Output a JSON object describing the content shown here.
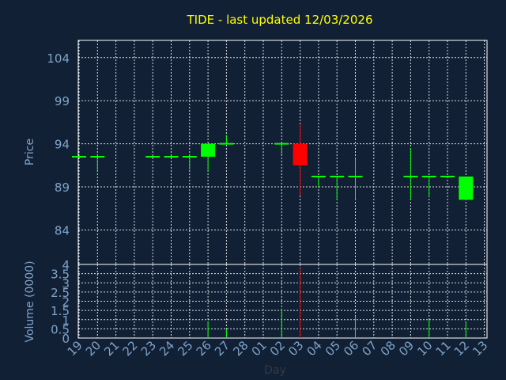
{
  "chart_data": [
    {
      "type": "candlestick",
      "title": "TIDE - last updated 12/03/2026",
      "ylabel": "Price",
      "ylim": [
        80,
        106
      ],
      "yticks": [
        104,
        99,
        94,
        89,
        84
      ],
      "grid": true,
      "colors": {
        "up": "#00ff00",
        "down": "#ff0000",
        "title": "#ffff00",
        "axis_text": "#7fa3c8",
        "grid": "#ffffff",
        "background": "#112035"
      },
      "x_labels": [
        "19",
        "20",
        "21",
        "22",
        "23",
        "24",
        "25",
        "26",
        "27",
        "28",
        "01",
        "02",
        "03",
        "04",
        "05",
        "06",
        "07",
        "08",
        "09",
        "10",
        "11",
        "12",
        "13"
      ],
      "candles": [
        {
          "day": "19",
          "open": 92.5,
          "high": 92.5,
          "low": 92.5,
          "close": 92.5
        },
        {
          "day": "20",
          "open": 92.5,
          "high": 92.5,
          "low": 90.8,
          "close": 92.5
        },
        {
          "day": "23",
          "open": 92.5,
          "high": 92.5,
          "low": 92.5,
          "close": 92.5
        },
        {
          "day": "24",
          "open": 92.5,
          "high": 92.5,
          "low": 92.5,
          "close": 92.5
        },
        {
          "day": "25",
          "open": 92.5,
          "high": 92.5,
          "low": 91.0,
          "close": 92.5
        },
        {
          "day": "26",
          "open": 92.5,
          "high": 94.0,
          "low": 90.8,
          "close": 94.0
        },
        {
          "day": "27",
          "open": 94.0,
          "high": 95.0,
          "low": 94.0,
          "close": 94.0
        },
        {
          "day": "02",
          "open": 94.0,
          "high": 94.0,
          "low": 92.8,
          "close": 94.0
        },
        {
          "day": "03",
          "open": 94.0,
          "high": 96.3,
          "low": 88.0,
          "close": 91.5
        },
        {
          "day": "04",
          "open": 90.2,
          "high": 90.2,
          "low": 89.0,
          "close": 90.2
        },
        {
          "day": "05",
          "open": 90.2,
          "high": 90.2,
          "low": 87.5,
          "close": 90.2
        },
        {
          "day": "06",
          "open": 90.2,
          "high": 92.3,
          "low": 87.5,
          "close": 90.2
        },
        {
          "day": "09",
          "open": 90.2,
          "high": 93.5,
          "low": 87.5,
          "close": 90.2
        },
        {
          "day": "10",
          "open": 90.2,
          "high": 90.2,
          "low": 87.8,
          "close": 90.2
        },
        {
          "day": "11",
          "open": 90.2,
          "high": 90.2,
          "low": 90.2,
          "close": 90.2
        },
        {
          "day": "12",
          "open": 87.5,
          "high": 90.2,
          "low": 87.5,
          "close": 90.2
        }
      ]
    },
    {
      "type": "bar",
      "ylabel": "Volume (0000)",
      "xlabel": "Day",
      "ylim": [
        0,
        4
      ],
      "ytick_labels": [
        "4",
        "3.5",
        "3",
        "2.5",
        "2",
        "1.5",
        "1",
        "0.5",
        "0"
      ],
      "x_labels": [
        "19",
        "20",
        "21",
        "22",
        "23",
        "24",
        "25",
        "26",
        "27",
        "28",
        "01",
        "02",
        "03",
        "04",
        "05",
        "06",
        "07",
        "08",
        "09",
        "10",
        "11",
        "12",
        "13"
      ],
      "bars": [
        {
          "day": "26",
          "value": 0.9,
          "color": "#00ff00"
        },
        {
          "day": "27",
          "value": 0.5,
          "color": "#00ff00"
        },
        {
          "day": "02",
          "value": 1.6,
          "color": "#00ff00"
        },
        {
          "day": "03",
          "value": 3.8,
          "color": "#ff0000"
        },
        {
          "day": "06",
          "value": 1.2,
          "color": "#00ff00"
        },
        {
          "day": "10",
          "value": 1.0,
          "color": "#00ff00"
        },
        {
          "day": "12",
          "value": 0.9,
          "color": "#00ff00"
        }
      ]
    }
  ]
}
